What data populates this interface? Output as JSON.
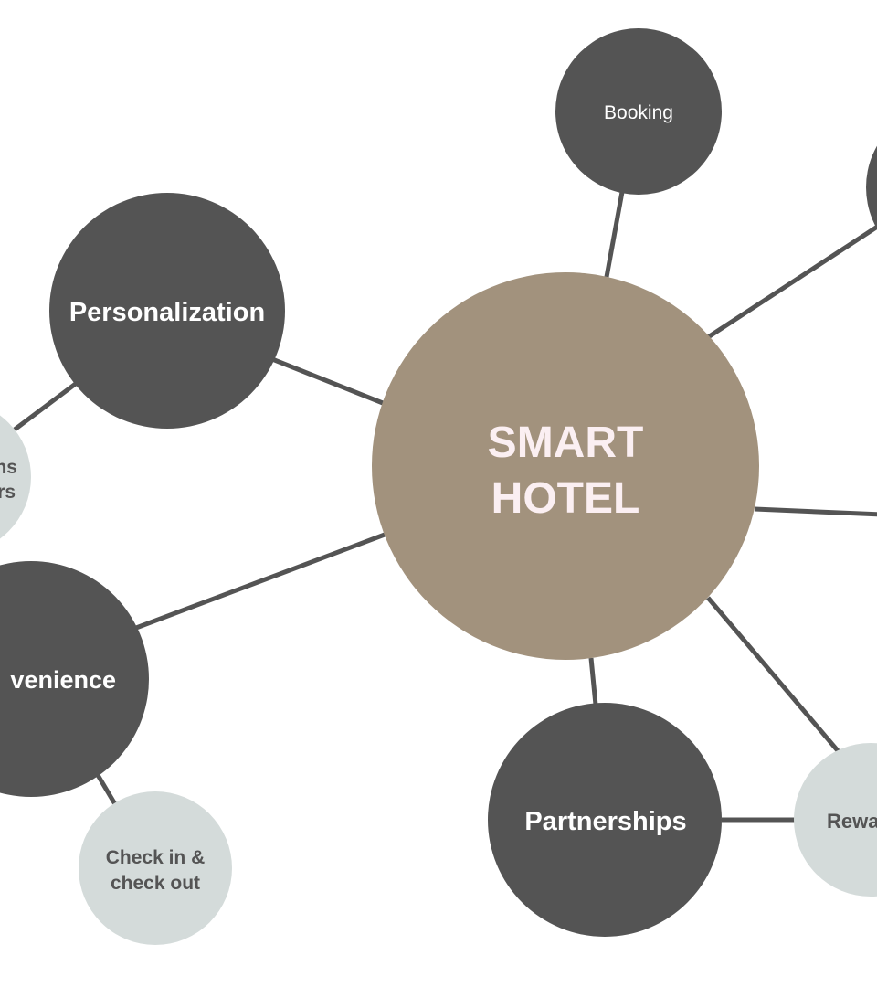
{
  "diagram": {
    "center": {
      "line1": "SMART",
      "line2": "HOTEL"
    },
    "nodes": {
      "booking": {
        "label": "Booking"
      },
      "personalization": {
        "label": "Personalization"
      },
      "partial_left": {
        "line1": "ns",
        "line2": "rs"
      },
      "convenience": {
        "label": "venience"
      },
      "check_in": {
        "line1": "Check in &",
        "line2": "check out"
      },
      "partnerships": {
        "label": "Partnerships"
      },
      "rewards": {
        "label": "Rewa"
      }
    },
    "colors": {
      "center_fill": "#a2927d",
      "center_text": "#fbeff2",
      "main_node_fill": "#545454",
      "main_node_text": "#ffffff",
      "sub_node_fill": "#d4dbda",
      "sub_node_text": "#545454",
      "connector": "#545454",
      "background": "#ffffff"
    }
  }
}
